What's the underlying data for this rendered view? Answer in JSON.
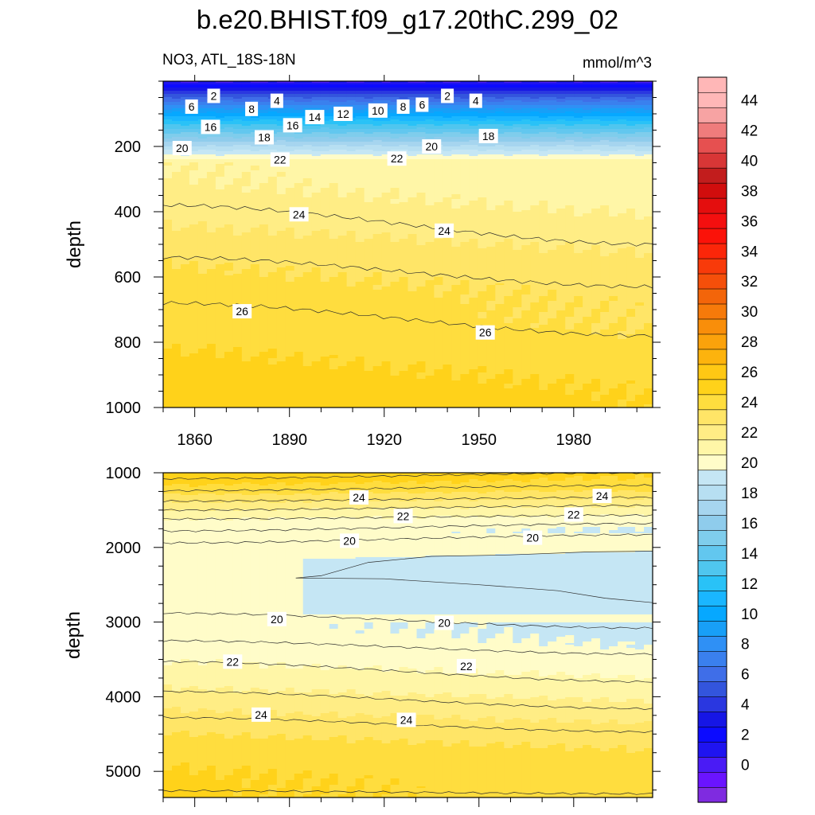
{
  "figure_title": "b.e20.BHIST.f09_g17.20thC.299_02",
  "panel_top": {
    "left_label": "NO3, ATL_18S-18N",
    "right_label": "mmol/m^3"
  },
  "colors": {
    "levels": [
      "#7f2be0",
      "#6a14ff",
      "#4a1bf5",
      "#1f14f0",
      "#0c0bff",
      "#1616e6",
      "#2a37e0",
      "#3355dd",
      "#3f6ee8",
      "#3a80ee",
      "#2f90f5",
      "#189ff7",
      "#06a8ff",
      "#1ab6ff",
      "#29c2f7",
      "#4fc6ef",
      "#62c7ef",
      "#7fcdec",
      "#8fccec",
      "#a6d5ef",
      "#b7dff2",
      "#c5e6f4",
      "#fffcc9",
      "#fff6a7",
      "#ffed85",
      "#ffe567",
      "#ffdd3e",
      "#ffd21a",
      "#ffc814",
      "#fdb30d",
      "#fba20b",
      "#f98e0a",
      "#f67a0a",
      "#f3650a",
      "#f54f0a",
      "#f83a0a",
      "#fb2609",
      "#fb1209",
      "#f40f0f",
      "#e40e0e",
      "#d10d0d",
      "#c21d1d",
      "#d83636",
      "#e65050",
      "#ef7c7c",
      "#f7a3a3",
      "#ffb7b7"
    ]
  },
  "chart_data": [
    {
      "type": "contour",
      "panel": "top",
      "title": "NO3, ATL_18S-18N",
      "units": "mmol/m^3",
      "xlabel": "",
      "ylabel": "depth",
      "xlim": [
        1850,
        2005
      ],
      "ylim": [
        1000,
        0
      ],
      "x_ticks": [
        1860,
        1890,
        1920,
        1950,
        1980
      ],
      "y_ticks": [
        200,
        400,
        600,
        800,
        1000
      ],
      "contour_lines": [
        {
          "level": 24,
          "depth_start": 380,
          "depth_end": 500
        },
        {
          "level": 25,
          "depth_start": 540,
          "depth_end": 630
        },
        {
          "level": 26,
          "depth_start": 680,
          "depth_end": 780
        }
      ],
      "contour_labels": [
        {
          "text": "2",
          "x": 1866,
          "y": 45
        },
        {
          "text": "2",
          "x": 1940,
          "y": 45
        },
        {
          "text": "4",
          "x": 1886,
          "y": 60
        },
        {
          "text": "4",
          "x": 1949,
          "y": 60
        },
        {
          "text": "6",
          "x": 1859,
          "y": 78
        },
        {
          "text": "6",
          "x": 1932,
          "y": 72
        },
        {
          "text": "8",
          "x": 1878,
          "y": 85
        },
        {
          "text": "8",
          "x": 1926,
          "y": 78
        },
        {
          "text": "10",
          "x": 1918,
          "y": 90
        },
        {
          "text": "12",
          "x": 1907,
          "y": 100
        },
        {
          "text": "14",
          "x": 1898,
          "y": 110
        },
        {
          "text": "16",
          "x": 1865,
          "y": 140
        },
        {
          "text": "16",
          "x": 1891,
          "y": 135
        },
        {
          "text": "18",
          "x": 1882,
          "y": 172
        },
        {
          "text": "18",
          "x": 1953,
          "y": 168
        },
        {
          "text": "20",
          "x": 1856,
          "y": 205
        },
        {
          "text": "20",
          "x": 1935,
          "y": 200
        },
        {
          "text": "22",
          "x": 1887,
          "y": 240
        },
        {
          "text": "22",
          "x": 1924,
          "y": 237
        },
        {
          "text": "24",
          "x": 1893,
          "y": 408
        },
        {
          "text": "24",
          "x": 1939,
          "y": 458
        },
        {
          "text": "26",
          "x": 1875,
          "y": 705
        },
        {
          "text": "26",
          "x": 1952,
          "y": 770
        }
      ]
    },
    {
      "type": "contour",
      "panel": "bottom",
      "xlabel": "",
      "ylabel": "depth",
      "xlim": [
        1850,
        2005
      ],
      "ylim": [
        5350,
        1000
      ],
      "y_ticks": [
        1000,
        2000,
        3000,
        4000,
        5000
      ],
      "contour_lines": [
        {
          "level": 25,
          "depth_start": 1080,
          "depth_end": 1000
        },
        {
          "level": 24.5,
          "depth_start": 1240,
          "depth_end": 1170
        },
        {
          "level": 24,
          "depth_start": 1380,
          "depth_end": 1330
        },
        {
          "level": 23,
          "depth_start": 1500,
          "depth_end": 1440
        },
        {
          "level": 22,
          "depth_start": 1620,
          "depth_end": 1570
        },
        {
          "level": 21,
          "depth_start": 1780,
          "depth_end": 1680
        },
        {
          "level": 20,
          "depth_start": 1940,
          "depth_end": 1830
        },
        {
          "level": 20,
          "depth_start": 2880,
          "depth_end": 3080
        },
        {
          "level": 21,
          "depth_start": 3250,
          "depth_end": 3430
        },
        {
          "level": 22,
          "depth_start": 3530,
          "depth_end": 3800
        },
        {
          "level": 23,
          "depth_start": 3930,
          "depth_end": 4160
        },
        {
          "level": 24,
          "depth_start": 4280,
          "depth_end": 4470
        },
        {
          "level": 25,
          "depth_start": 5260,
          "depth_end": 5300
        }
      ],
      "contour_labels": [
        {
          "text": "24",
          "x": 1912,
          "y": 1330
        },
        {
          "text": "24",
          "x": 1989,
          "y": 1310
        },
        {
          "text": "22",
          "x": 1926,
          "y": 1580
        },
        {
          "text": "22",
          "x": 1980,
          "y": 1560
        },
        {
          "text": "20",
          "x": 1909,
          "y": 1910
        },
        {
          "text": "20",
          "x": 1967,
          "y": 1870
        },
        {
          "text": "20",
          "x": 1886,
          "y": 2960
        },
        {
          "text": "20",
          "x": 1939,
          "y": 3010
        },
        {
          "text": "22",
          "x": 1872,
          "y": 3530
        },
        {
          "text": "22",
          "x": 1946,
          "y": 3590
        },
        {
          "text": "24",
          "x": 1881,
          "y": 4240
        },
        {
          "text": "24",
          "x": 1927,
          "y": 4310
        }
      ]
    },
    {
      "type": "colorbar",
      "range": [
        -2,
        46
      ],
      "step": 1,
      "tick_labels": [
        "0",
        "2",
        "4",
        "6",
        "8",
        "10",
        "12",
        "14",
        "16",
        "18",
        "20",
        "22",
        "24",
        "26",
        "28",
        "30",
        "32",
        "34",
        "36",
        "38",
        "40",
        "42",
        "44"
      ]
    }
  ]
}
